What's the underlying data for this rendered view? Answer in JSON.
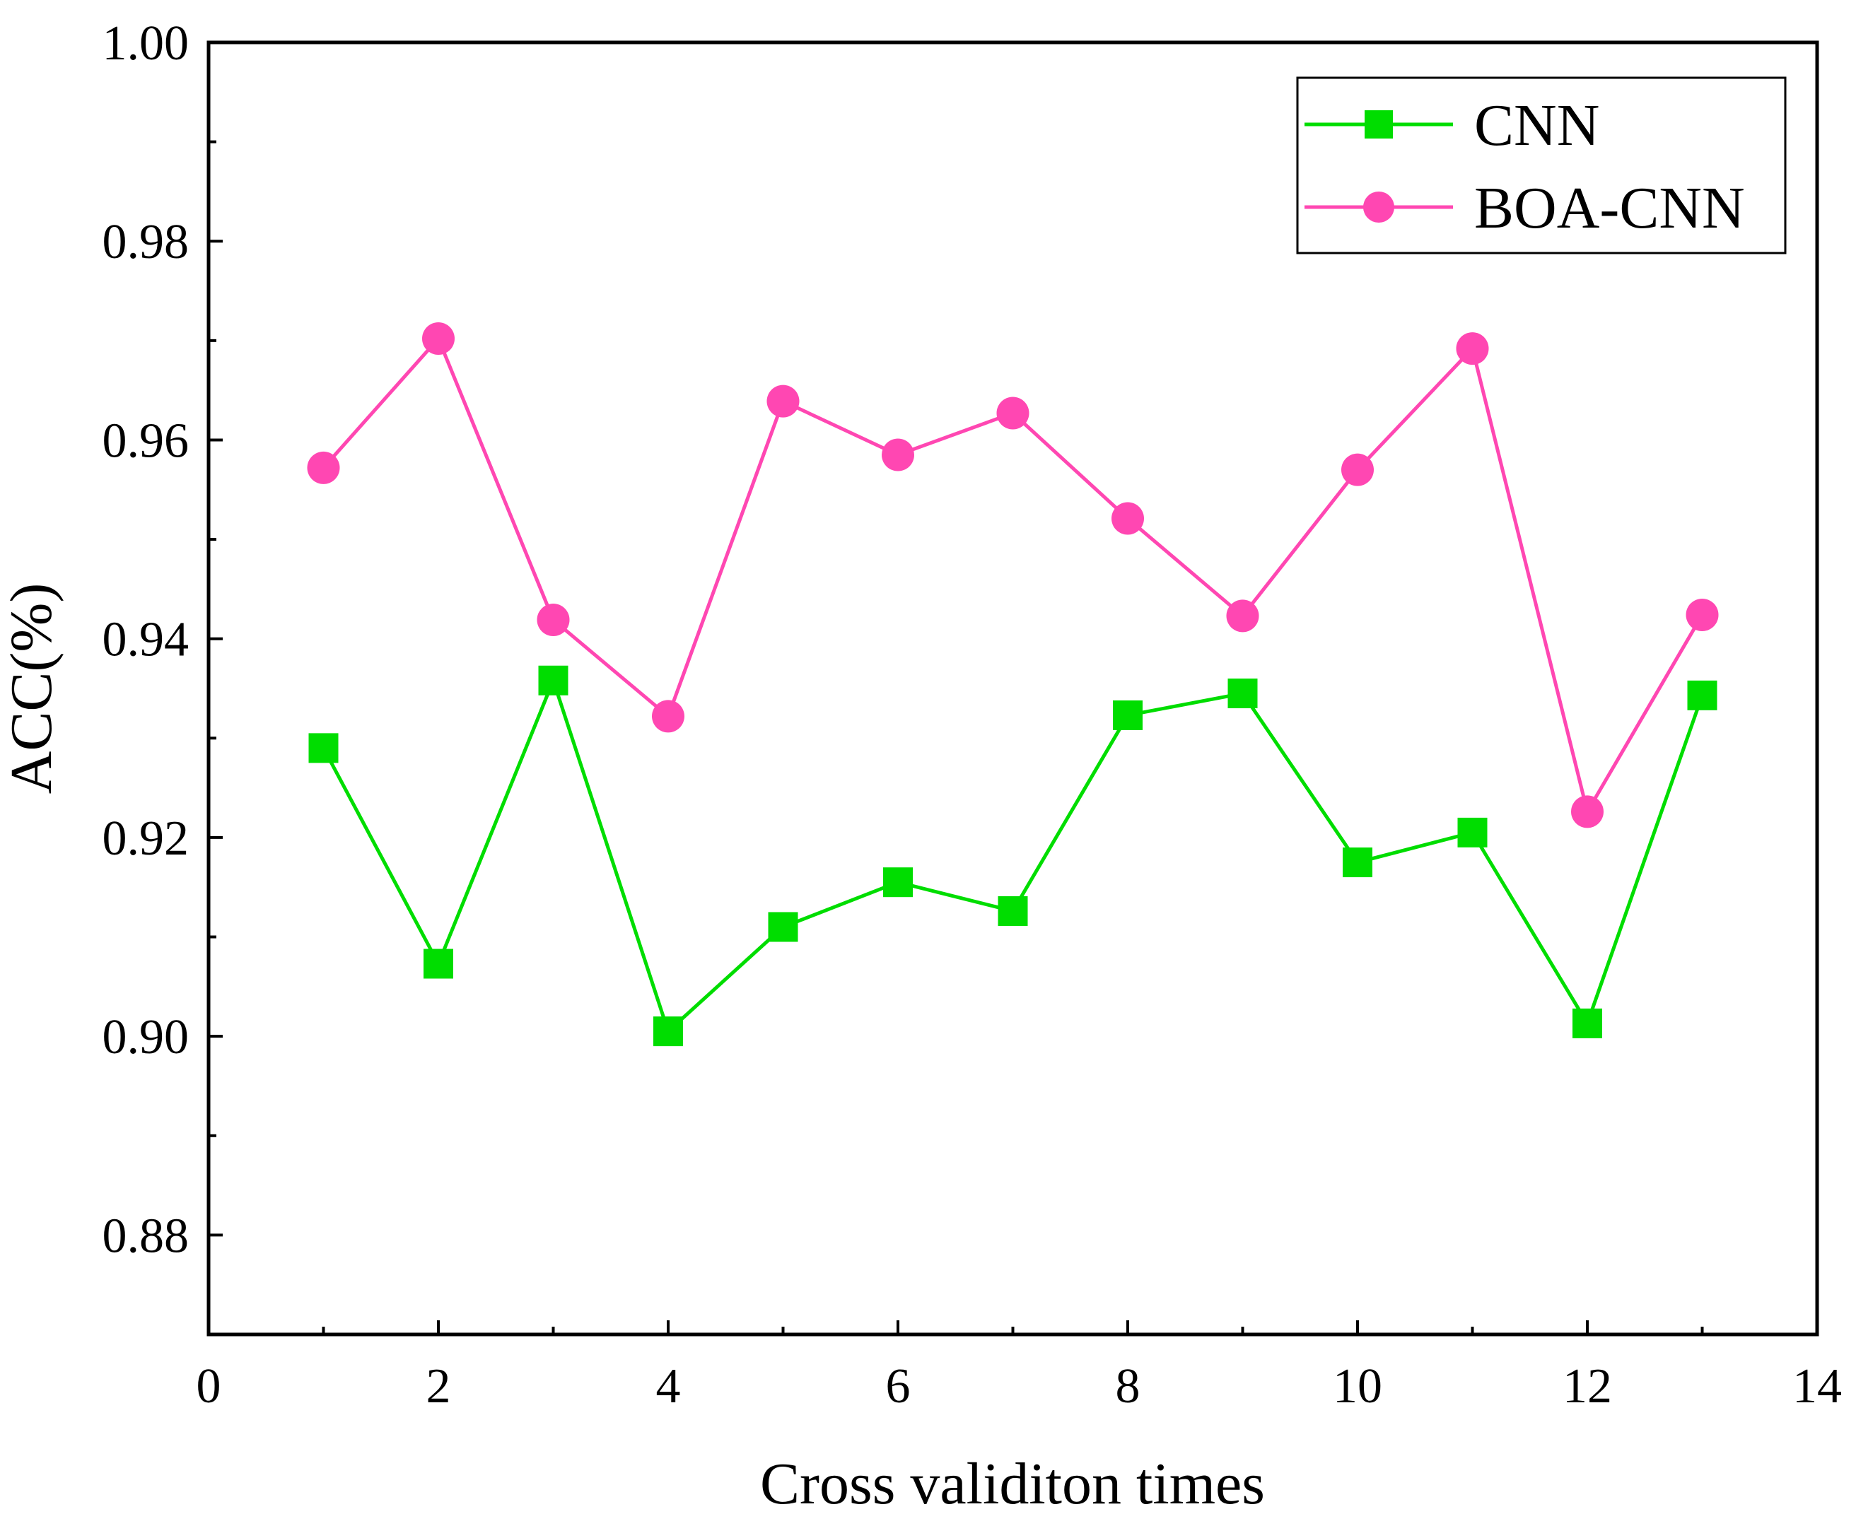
{
  "chart_data": {
    "type": "line",
    "title": "",
    "xlabel": "Cross validiton times",
    "ylabel": "ACC(%)",
    "xlim": [
      0,
      14
    ],
    "ylim": [
      0.87,
      1.0
    ],
    "x_ticks": [
      0,
      2,
      4,
      6,
      8,
      10,
      12,
      14
    ],
    "x_tick_labels": [
      "0",
      "2",
      "4",
      "6",
      "8",
      "10",
      "12",
      "14"
    ],
    "x_minor_ticks": [
      1,
      3,
      5,
      7,
      9,
      11,
      13
    ],
    "y_ticks": [
      0.88,
      0.9,
      0.92,
      0.94,
      0.96,
      0.98,
      1.0
    ],
    "y_tick_labels": [
      "0.88",
      "0.90",
      "0.92",
      "0.94",
      "0.96",
      "0.98",
      "1.00"
    ],
    "y_minor_ticks": [
      0.89,
      0.91,
      0.93,
      0.95,
      0.97,
      0.99
    ],
    "grid": false,
    "legend_position": "top-right",
    "x": [
      1,
      2,
      3,
      4,
      5,
      6,
      7,
      8,
      9,
      10,
      11,
      12,
      13
    ],
    "series": [
      {
        "name": "CNN",
        "color": "#00dd00",
        "marker": "square",
        "values": [
          0.929,
          0.9073,
          0.9358,
          0.9005,
          0.911,
          0.9155,
          0.9126,
          0.9323,
          0.9345,
          0.9175,
          0.9205,
          0.9013,
          0.9343
        ]
      },
      {
        "name": "BOA-CNN",
        "color": "#ff47b2",
        "marker": "circle",
        "values": [
          0.9572,
          0.9702,
          0.9419,
          0.9322,
          0.9639,
          0.9585,
          0.9627,
          0.9521,
          0.9423,
          0.957,
          0.9692,
          0.9226,
          0.9424
        ]
      }
    ]
  }
}
